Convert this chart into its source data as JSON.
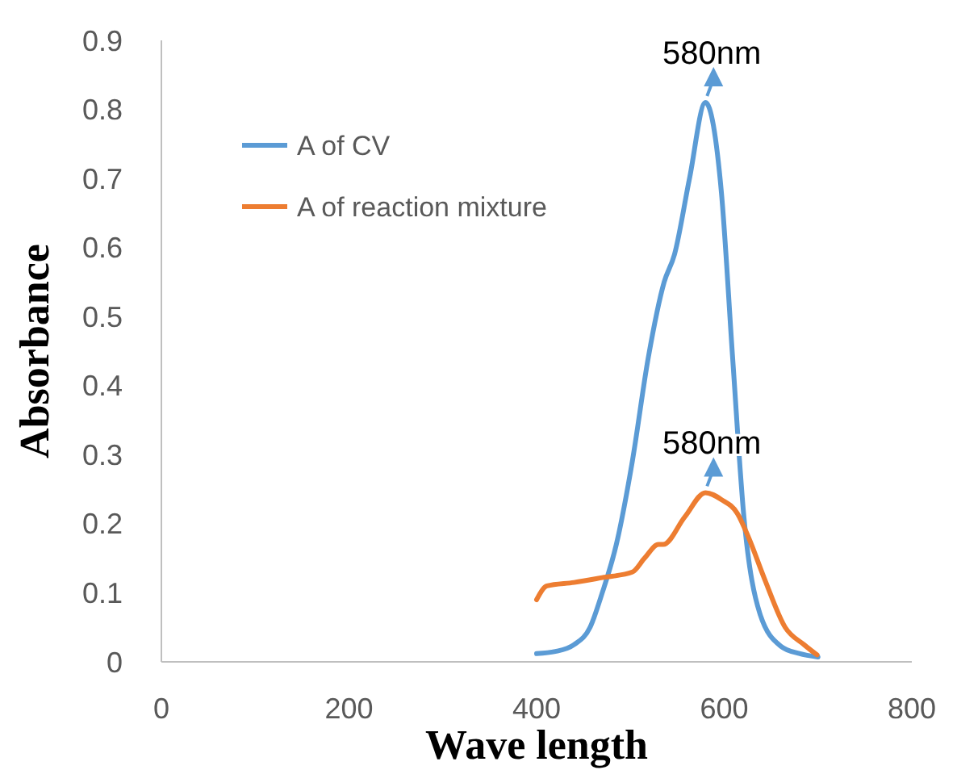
{
  "chart_data": {
    "type": "line",
    "xlabel": "Wave length",
    "ylabel": "Absorbance",
    "xlim": [
      0,
      800
    ],
    "xticks": [
      0,
      200,
      400,
      600,
      800
    ],
    "ylim": [
      0,
      0.9
    ],
    "yticks": [
      0,
      0.1,
      0.2,
      0.3,
      0.4,
      0.5,
      0.6,
      0.7,
      0.8,
      0.9
    ],
    "grid": false,
    "legend": "top left",
    "marker": "none",
    "line_style": "solid",
    "series": [
      {
        "name": "A of CV",
        "color": "#5b9bd5",
        "x": [
          400,
          420,
          440,
          457,
          470,
          485,
          502,
          519,
          536,
          547,
          563,
          580,
          597,
          609,
          621,
          638,
          660,
          680,
          700
        ],
        "values": [
          0.012,
          0.015,
          0.025,
          0.05,
          0.1,
          0.17,
          0.29,
          0.44,
          0.55,
          0.59,
          0.7,
          0.81,
          0.68,
          0.44,
          0.21,
          0.07,
          0.023,
          0.012,
          0.007
        ]
      },
      {
        "name": "A of reaction mixture",
        "color": "#ed7d31",
        "x": [
          400,
          411,
          440,
          470,
          502,
          515,
          530,
          535,
          558,
          580,
          597,
          614,
          626,
          643,
          665,
          685,
          699
        ],
        "values": [
          0.09,
          0.11,
          0.115,
          0.122,
          0.13,
          0.15,
          0.17,
          0.17,
          0.21,
          0.245,
          0.235,
          0.215,
          0.18,
          0.12,
          0.05,
          0.025,
          0.01
        ]
      }
    ],
    "annotations": [
      {
        "text": "580nm",
        "x": 580,
        "y": 0.81
      },
      {
        "text": "580nm",
        "x": 580,
        "y": 0.245
      }
    ]
  }
}
